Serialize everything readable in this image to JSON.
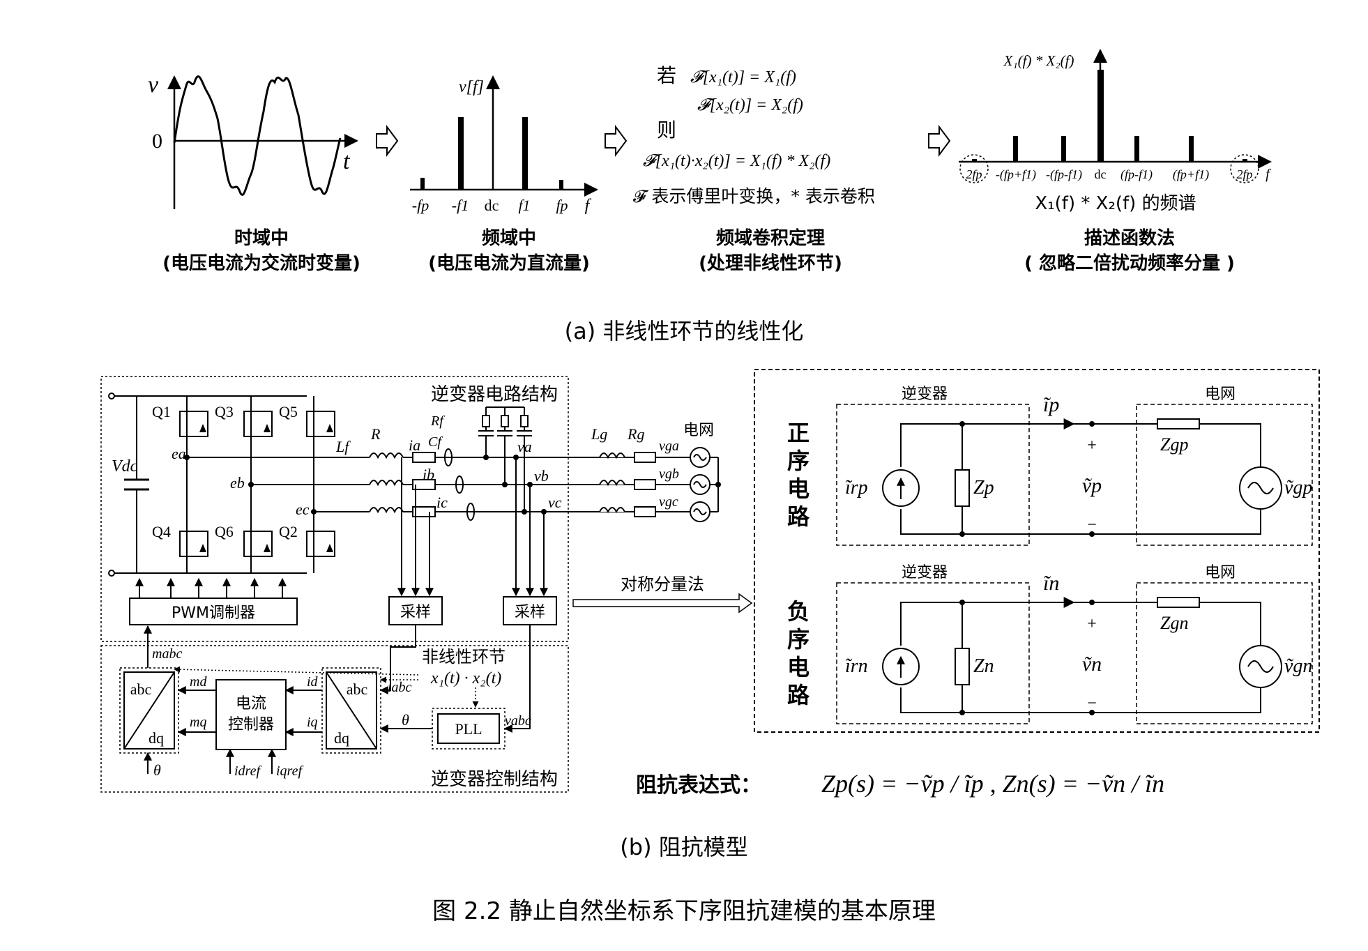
{
  "panel_a": {
    "time": {
      "v_label": "v",
      "zero_label": "0",
      "t_label": "t",
      "title": "时域中",
      "subtitle": "(电压电流为交流时变量)"
    },
    "freq": {
      "v_label": "v[f]",
      "ticks": [
        "-fp",
        "-f1",
        "dc",
        "f1",
        "fp",
        "f"
      ],
      "title": "频域中",
      "subtitle": "(电压电流为直流量)"
    },
    "conv": {
      "if_label": "若",
      "eq1": "𝓕[x₁(t)] = X₁(f)",
      "eq2": "𝓕[x₂(t)] = X₂(f)",
      "then_label": "则",
      "eq3": "𝓕[x₁(t)·x₂(t)] = X₁(f) * X₂(f)",
      "note": "𝓕 表示傅里叶变换，* 表示卷积",
      "title": "频域卷积定理",
      "subtitle": "(处理非线性环节)"
    },
    "describe": {
      "axis_label": "X₁(f) * X₂(f)",
      "ticks": [
        "2fp",
        "-(fp+f1)",
        "-(fp-f1)",
        "dc",
        "(fp-f1)",
        "(fp+f1)",
        "2fp",
        "f"
      ],
      "caption": "X₁(f) * X₂(f) 的频谱",
      "title": "描述函数法",
      "subtitle": "( 忽略二倍扰动频率分量 )"
    },
    "caption": "(a)  非线性环节的线性化"
  },
  "panel_b": {
    "inverter_circuit_label": "逆变器电路结构",
    "inverter_control_label": "逆变器控制结构",
    "switches": [
      "Q1",
      "Q3",
      "Q5",
      "Q4",
      "Q6",
      "Q2"
    ],
    "vdc": "Vdc",
    "ea": "ea",
    "eb": "eb",
    "ec": "ec",
    "lf": "Lf",
    "r": "R",
    "rf": "Rf",
    "cf": "Cf",
    "lg": "Lg",
    "rg": "Rg",
    "ia": "ia",
    "ib": "ib",
    "ic": "ic",
    "va": "va",
    "vb": "vb",
    "vc": "vc",
    "vga": "vga",
    "vgb": "vgb",
    "vgc": "vgc",
    "grid": "电网",
    "pwm": "PWM调制器",
    "sample1": "采样",
    "sample2": "采样",
    "mabc": "mabc",
    "md": "md",
    "mq": "mq",
    "abc": "abc",
    "dq": "dq",
    "current_ctrl_1": "电流",
    "current_ctrl_2": "控制器",
    "id": "id",
    "iq": "iq",
    "iabc": "iabc",
    "nonlinear": "非线性环节",
    "x1x2": "x₁(t) · x₂(t)",
    "theta": "θ",
    "pll": "PLL",
    "vabc": "vabc",
    "idref": "idref",
    "iqref": "iqref",
    "sym_method": "对称分量法",
    "pos": {
      "label_chars": [
        "正",
        "序",
        "电",
        "路"
      ],
      "inverter": "逆变器",
      "grid": "电网",
      "i_src": "ĩrp",
      "z": "Zp",
      "i_line": "ĩp",
      "v": "ṽp",
      "zg": "Zgp",
      "vg": "ṽgp",
      "plus": "+",
      "minus": "−"
    },
    "neg": {
      "label_chars": [
        "负",
        "序",
        "电",
        "路"
      ],
      "inverter": "逆变器",
      "grid": "电网",
      "i_src": "ĩrn",
      "z": "Zn",
      "i_line": "ĩn",
      "v": "ṽn",
      "zg": "Zgn",
      "vg": "ṽgn",
      "plus": "+",
      "minus": "−"
    },
    "impedance_label": "阻抗表达式：",
    "impedance_expr": "Zp(s) = −ṽp / ĩp   , Zn(s) = −ṽn / ĩn",
    "caption": "(b)  阻抗模型"
  },
  "figure_caption": "图 2.2  静止自然坐标系下序阻抗建模的基本原理"
}
